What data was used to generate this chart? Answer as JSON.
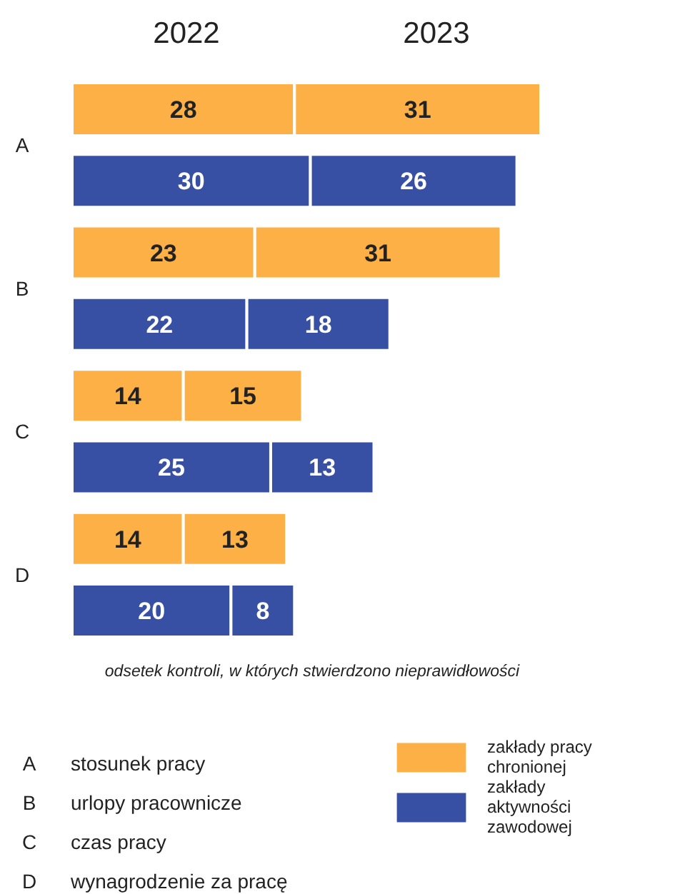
{
  "chart_data": {
    "type": "bar",
    "orientation": "horizontal",
    "stacked": true,
    "data_labels": true,
    "legend": "bottom right",
    "categories": [
      "A",
      null,
      "B",
      null,
      "C",
      null,
      "D",
      null
    ],
    "series": [
      {
        "name": "zakłady pracy chronionej",
        "color": "#fdb046",
        "values": [
          28,
          null,
          23,
          null,
          14,
          null,
          14,
          null
        ]
      },
      {
        "color": "#fdb046",
        "values": [
          31,
          null,
          31,
          null,
          15,
          null,
          13,
          null
        ]
      },
      {
        "name": "zakłady aktywności zawodowej",
        "color": "#3750a4",
        "values": [
          null,
          30,
          null,
          22,
          null,
          25,
          null,
          20
        ]
      },
      {
        "color": "#3750a4",
        "values": [
          null,
          26,
          null,
          18,
          null,
          13,
          null,
          8
        ]
      }
    ],
    "annotations": [
      "2022",
      "2023",
      "odsetek kontroli, w których stwierdzono nieprawidłowości",
      "stosunek pracy",
      "urlopy pracownicze",
      "czas pracy",
      "wynagrodzenie za pracę"
    ]
  }
}
